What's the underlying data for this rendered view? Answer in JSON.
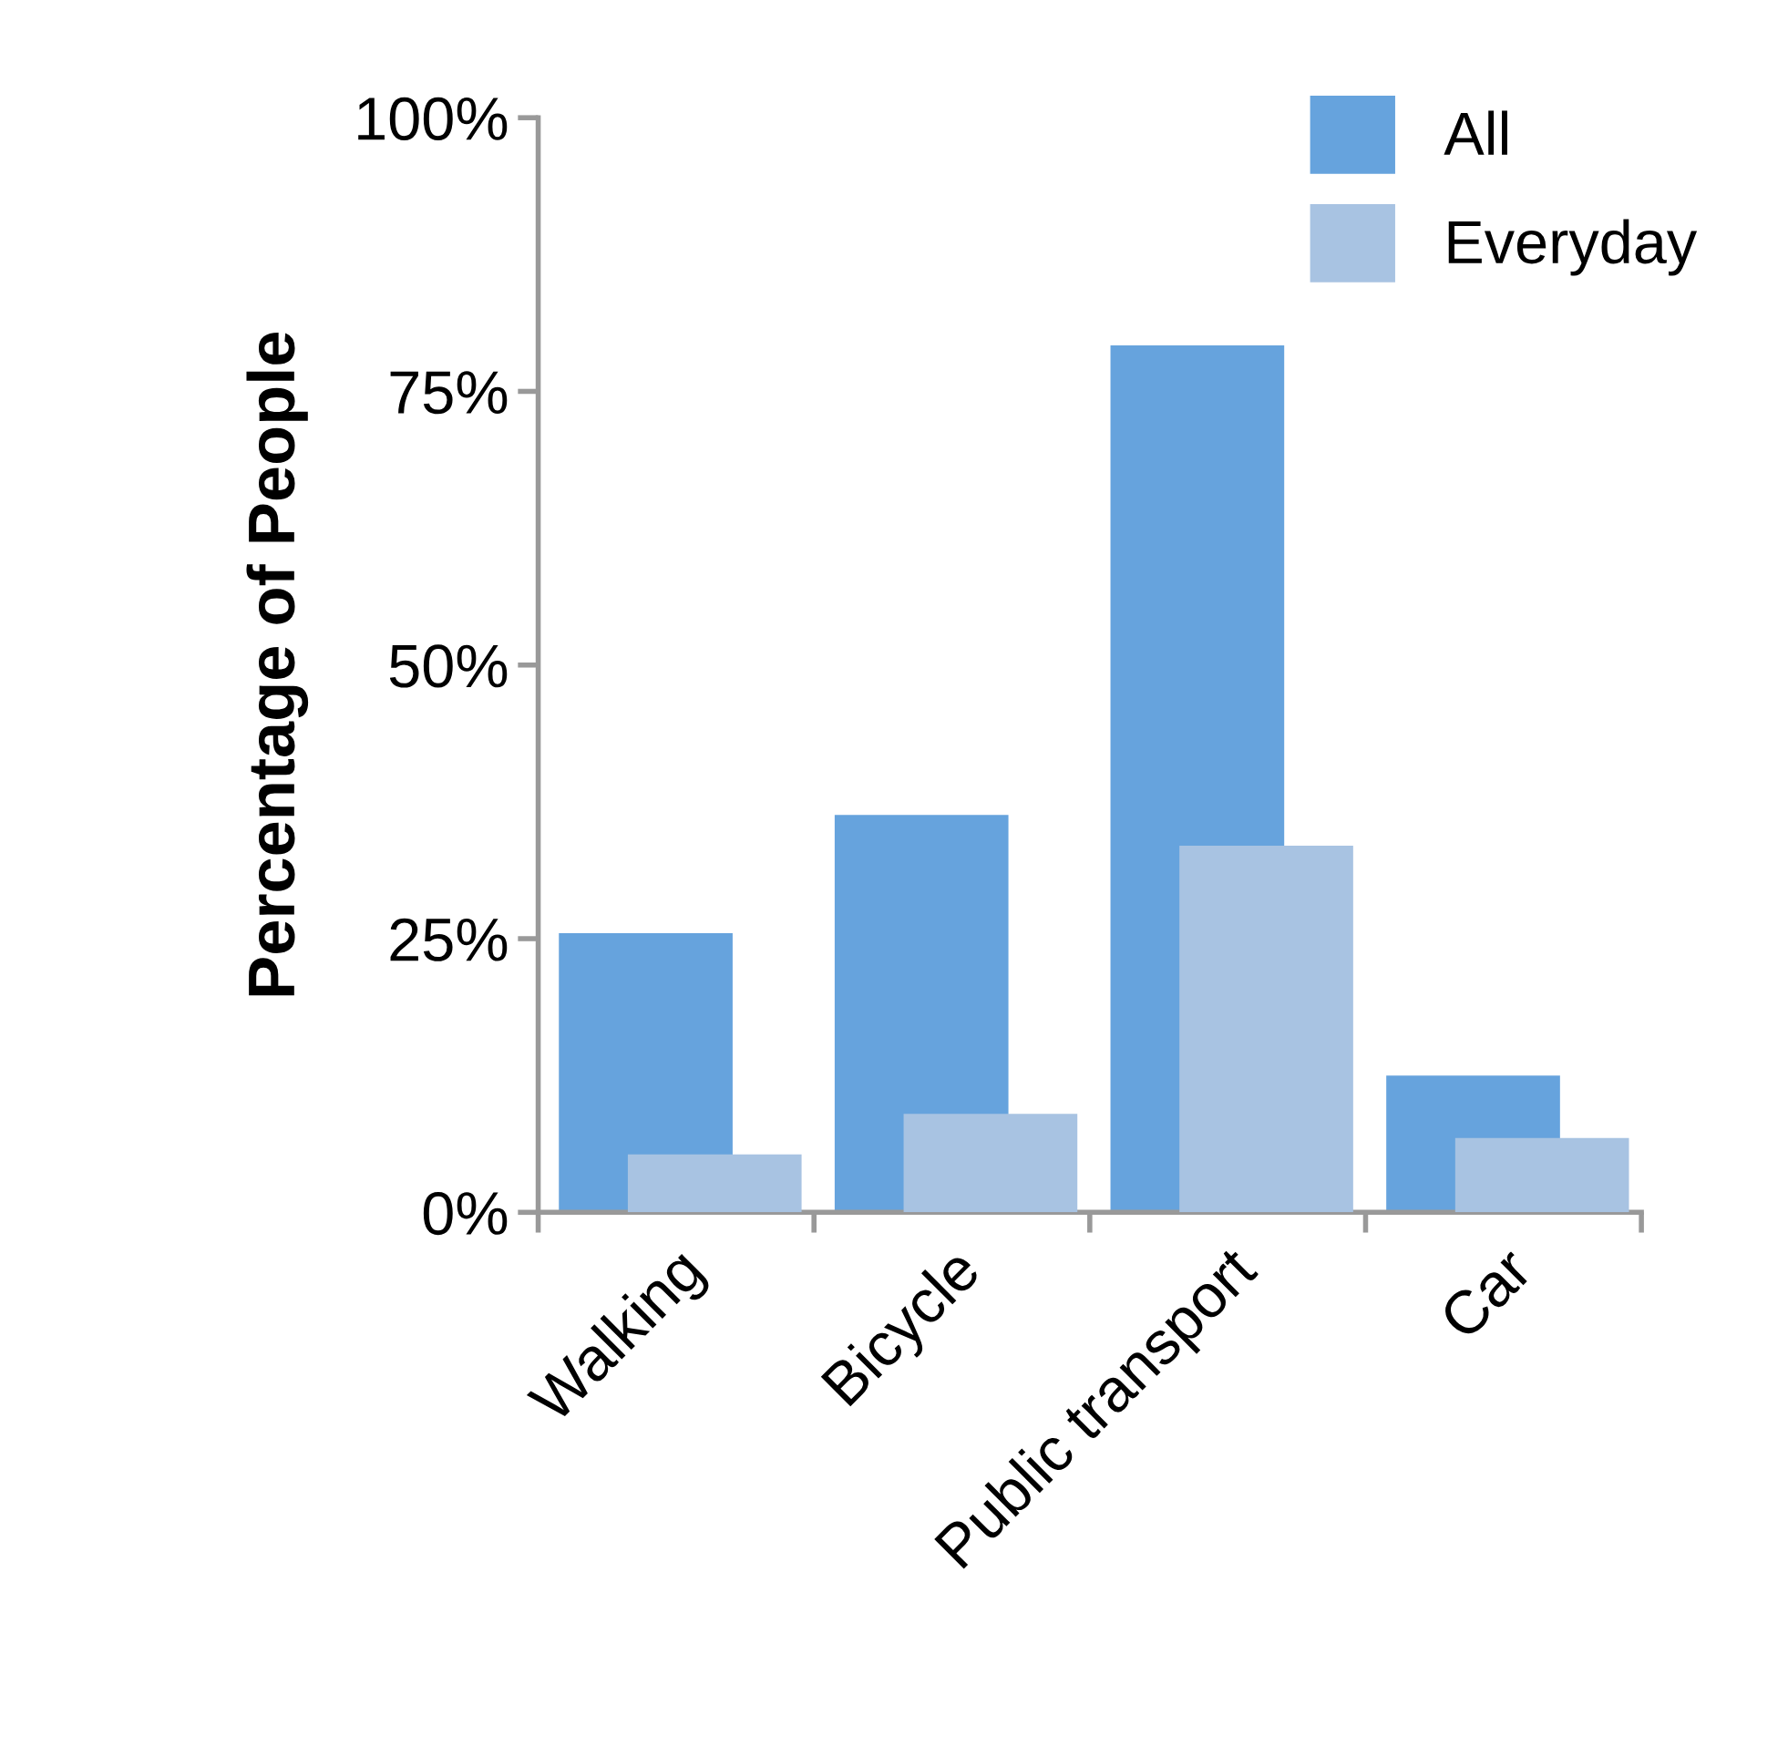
{
  "chart_data": {
    "type": "bar",
    "ylabel": "Percentage of People",
    "categories": [
      "Walking",
      "Bicycle",
      "Public transport",
      "Car"
    ],
    "series": [
      {
        "name": "All",
        "color": "#66a3dd",
        "values": [
          25.5,
          36.3,
          79.2,
          12.5
        ]
      },
      {
        "name": "Everyday",
        "color": "#a8c3e2",
        "values": [
          5.3,
          9,
          33.5,
          6.8
        ]
      }
    ],
    "ylim": [
      0,
      100
    ],
    "yticks": [
      {
        "value": 0,
        "label": "0%"
      },
      {
        "value": 25,
        "label": "25%"
      },
      {
        "value": 50,
        "label": "50%"
      },
      {
        "value": 75,
        "label": "75%"
      },
      {
        "value": 100,
        "label": "100%"
      }
    ],
    "grid": false,
    "legend": "top right"
  }
}
